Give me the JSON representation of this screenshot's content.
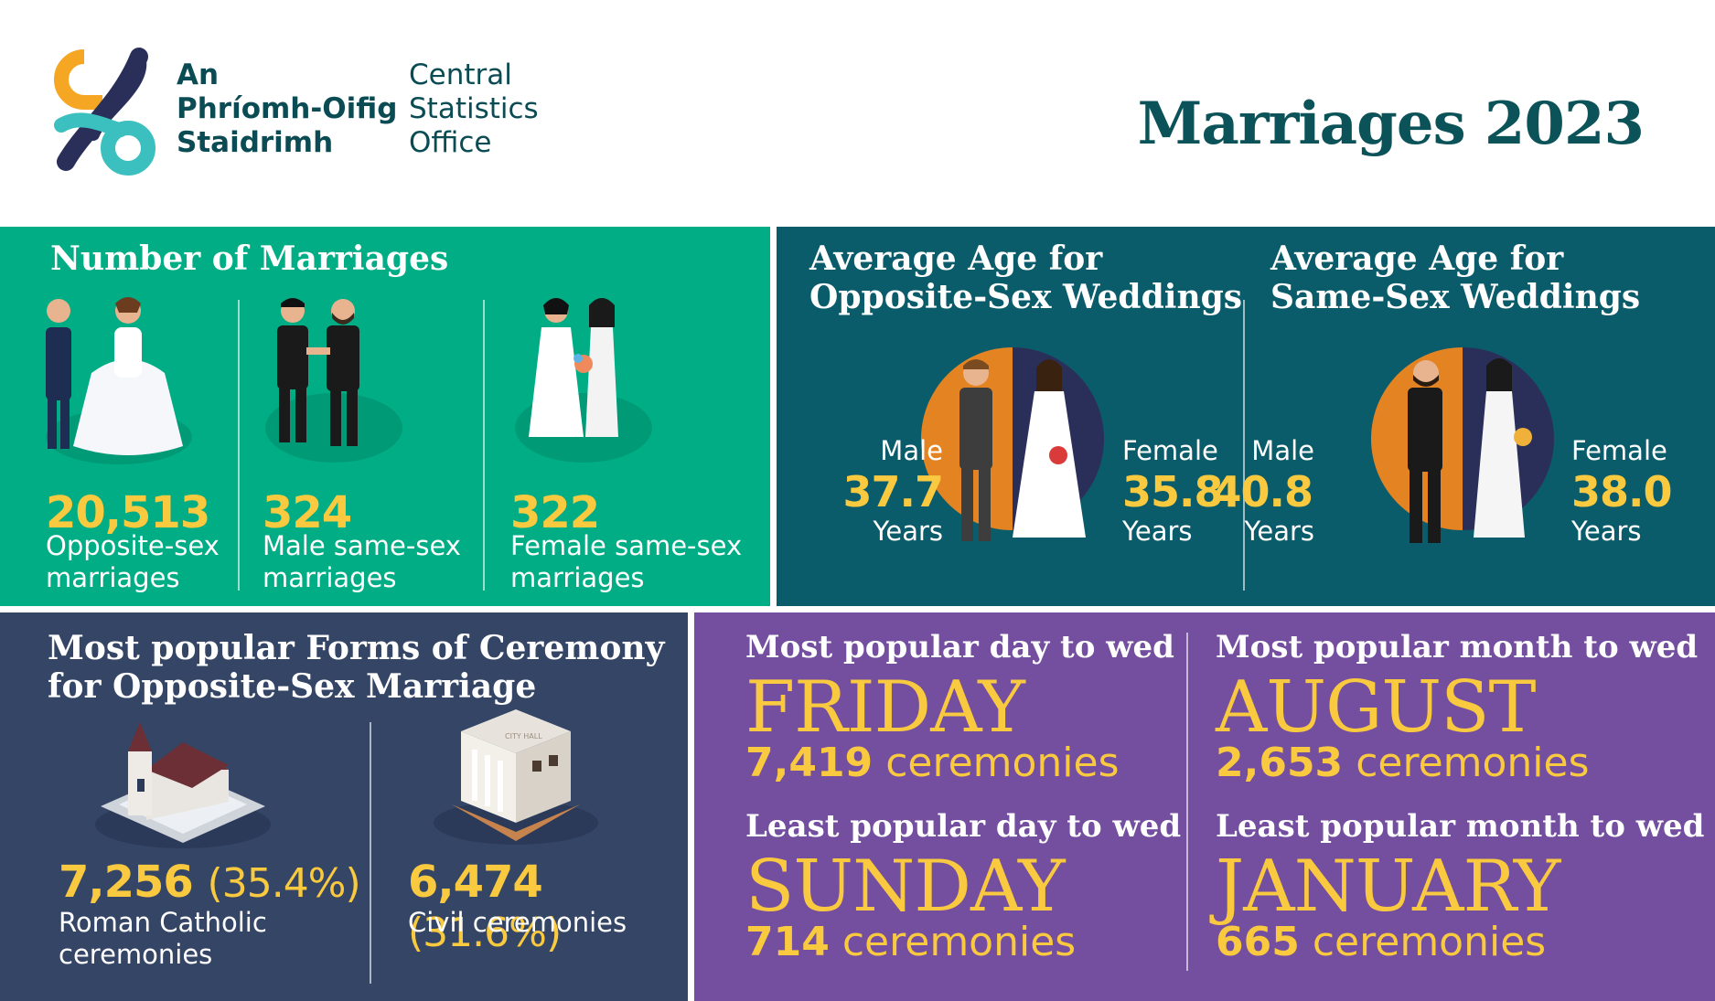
{
  "header": {
    "logo_irish": [
      "An",
      "Phríomh-Oifig",
      "Staidrimh"
    ],
    "logo_english": [
      "Central",
      "Statistics",
      "Office"
    ],
    "title": "Marriages 2023"
  },
  "colors": {
    "green_panel": "#00ad85",
    "teal_panel": "#0b5c6b",
    "navy_panel": "#344566",
    "purple_panel": "#744e9f",
    "highlight": "#f9c93f",
    "title_text": "#0b5359",
    "logo_orange": "#f5a623",
    "logo_dark": "#2a2f5a",
    "logo_teal": "#3cbfbf"
  },
  "marriages": {
    "heading": "Number of Marriages",
    "items": [
      {
        "value": "20,513",
        "label": [
          "Opposite-sex",
          "marriages"
        ],
        "icon": "bride-groom-icon"
      },
      {
        "value": "324",
        "label": [
          "Male same-sex",
          "marriages"
        ],
        "icon": "two-grooms-icon"
      },
      {
        "value": "322",
        "label": [
          "Female same-sex",
          "marriages"
        ],
        "icon": "two-brides-icon"
      }
    ]
  },
  "age_opposite": {
    "heading": [
      "Average Age for",
      "Opposite-Sex Weddings"
    ],
    "male_label": "Male",
    "male_value": "37.7",
    "male_unit": "Years",
    "female_label": "Female",
    "female_value": "35.8",
    "female_unit": "Years"
  },
  "age_same": {
    "heading": [
      "Average Age for",
      "Same-Sex Weddings"
    ],
    "male_label": "Male",
    "male_value": "40.8",
    "male_unit": "Years",
    "female_label": "Female",
    "female_value": "38.0",
    "female_unit": "Years"
  },
  "ceremony": {
    "heading": [
      "Most popular Forms of Ceremony",
      "for Opposite-Sex Marriage"
    ],
    "items": [
      {
        "value": "7,256",
        "pct": "(35.4%)",
        "label": [
          "Roman Catholic",
          "ceremonies"
        ],
        "icon": "church-icon"
      },
      {
        "value": "6,474",
        "pct": "(31.6%)",
        "label": [
          "Civil ceremonies"
        ],
        "icon": "city-hall-icon"
      }
    ],
    "city_hall_sign": "CITY HALL"
  },
  "popular": {
    "day_most_title": "Most popular day to wed",
    "day_most": "FRIDAY",
    "day_most_count": "7,419",
    "day_most_unit": "ceremonies",
    "day_least_title": "Least popular day to wed",
    "day_least": "SUNDAY",
    "day_least_count": "714",
    "day_least_unit": "ceremonies",
    "month_most_title": "Most popular month to wed",
    "month_most": "AUGUST",
    "month_most_count": "2,653",
    "month_most_unit": "ceremonies",
    "month_least_title": "Least popular month to wed",
    "month_least": "JANUARY",
    "month_least_count": "665",
    "month_least_unit": "ceremonies"
  }
}
